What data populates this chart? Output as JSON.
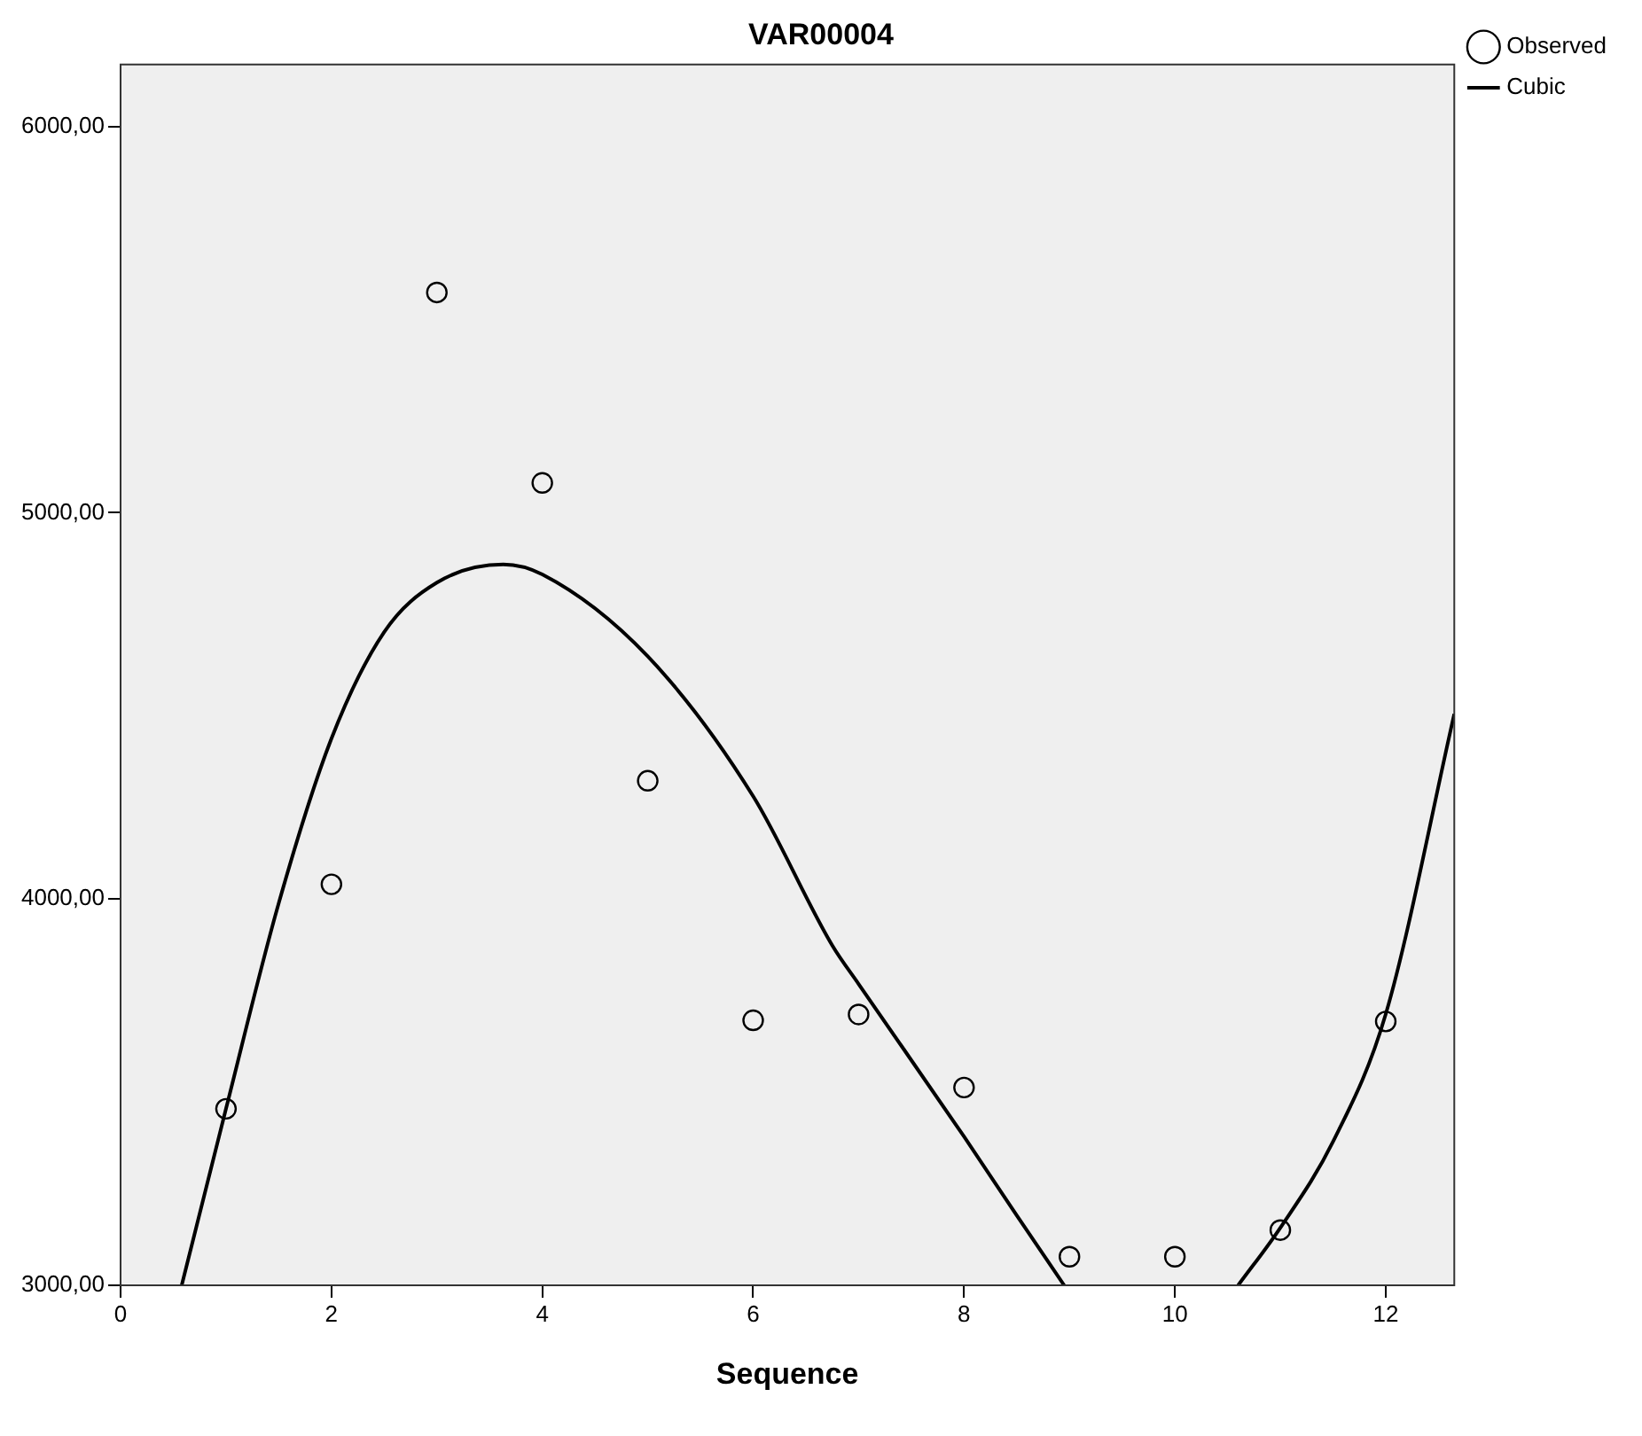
{
  "chart_data": {
    "type": "scatter",
    "title": "VAR00004",
    "xlabel": "Sequence",
    "xlim": [
      0,
      12.65
    ],
    "xticks": [
      0,
      2,
      4,
      6,
      8,
      10,
      12
    ],
    "ylim": [
      3000,
      6160
    ],
    "yticks": [
      {
        "value": 3000,
        "label": "3000,00"
      },
      {
        "value": 4000,
        "label": "4000,00"
      },
      {
        "value": 5000,
        "label": "5000,00"
      },
      {
        "value": 6000,
        "label": "6000,00"
      }
    ],
    "grid": false,
    "legend": "top right",
    "marker": "circle",
    "series": [
      {
        "name": "Observed",
        "type": "scatter",
        "color": "#000000",
        "x": [
          1,
          2,
          3,
          4,
          5,
          6,
          7,
          8,
          9,
          10,
          11,
          12
        ],
        "values": [
          3457,
          4038,
          5570,
          5077,
          4306,
          3686,
          3701,
          3512,
          3074,
          3074,
          3143,
          3683
        ]
      },
      {
        "name": "Cubic",
        "type": "line",
        "color": "#000000",
        "line_style": "solid",
        "marker": "none",
        "x": [
          0.58,
          1,
          1.5,
          2,
          2.5,
          3,
          3.63,
          4,
          5,
          6,
          6.75,
          7,
          8,
          8.5,
          8.95,
          9.8,
          10.6,
          11,
          11.5,
          12,
          12.65
        ],
        "values": [
          3000,
          3457,
          3989,
          4415,
          4691,
          4819,
          4866,
          4840,
          4628,
          4266,
          3880,
          3780,
          3385,
          3181,
          3000,
          null,
          3000,
          3149,
          3372,
          3702,
          4479
        ]
      }
    ]
  }
}
